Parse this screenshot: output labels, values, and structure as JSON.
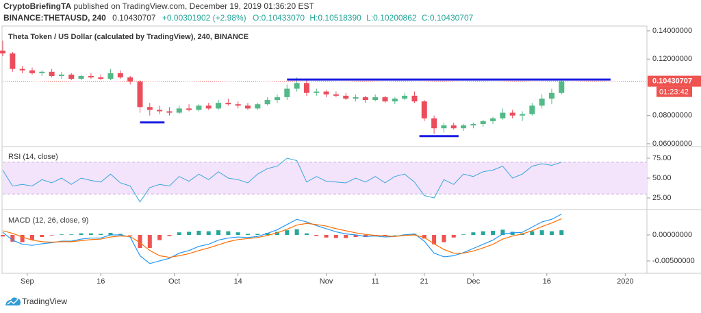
{
  "header": {
    "author": "CryptoBriefingTA",
    "published": "published on TradingView.com, December 19, 2019 01:36:20 EST",
    "symbol": "BINANCE:THETAUSD, 240",
    "last": "0.10430707",
    "change": "+0.00301902 (+2.98%)",
    "ohlc": [
      "O:0.10433070",
      "H:0.10518390",
      "L:0.10200862",
      "C:0.10430707"
    ]
  },
  "footer": {
    "brand": "TradingView"
  },
  "chart_data": {
    "type": "candlestick",
    "title": "Theta Token / US Dollar (calculated by TradingView), 240, BINANCE",
    "up_color": "#53b987",
    "down_color": "#eb4d5c",
    "x": [
      "2019-08-27",
      "2019-08-29",
      "2019-08-31",
      "2019-09-02",
      "2019-09-04",
      "2019-09-06",
      "2019-09-08",
      "2019-09-10",
      "2019-09-12",
      "2019-09-14",
      "2019-09-16",
      "2019-09-18",
      "2019-09-20",
      "2019-09-22",
      "2019-09-24",
      "2019-09-26",
      "2019-09-28",
      "2019-09-30",
      "2019-10-02",
      "2019-10-04",
      "2019-10-06",
      "2019-10-08",
      "2019-10-10",
      "2019-10-12",
      "2019-10-14",
      "2019-10-16",
      "2019-10-18",
      "2019-10-20",
      "2019-10-22",
      "2019-10-24",
      "2019-10-26",
      "2019-10-28",
      "2019-10-30",
      "2019-11-01",
      "2019-11-03",
      "2019-11-05",
      "2019-11-07",
      "2019-11-09",
      "2019-11-11",
      "2019-11-13",
      "2019-11-15",
      "2019-11-17",
      "2019-11-19",
      "2019-11-21",
      "2019-11-23",
      "2019-11-25",
      "2019-11-27",
      "2019-11-29",
      "2019-12-01",
      "2019-12-03",
      "2019-12-05",
      "2019-12-07",
      "2019-12-09",
      "2019-12-11",
      "2019-12-13",
      "2019-12-15",
      "2019-12-17",
      "2019-12-19"
    ],
    "open": [
      0.126,
      0.124,
      0.113,
      0.112,
      0.11,
      0.111,
      0.108,
      0.109,
      0.106,
      0.108,
      0.107,
      0.106,
      0.11,
      0.107,
      0.104,
      0.086,
      0.084,
      0.083,
      0.082,
      0.085,
      0.084,
      0.087,
      0.085,
      0.089,
      0.088,
      0.087,
      0.085,
      0.088,
      0.091,
      0.093,
      0.099,
      0.103,
      0.096,
      0.097,
      0.095,
      0.094,
      0.092,
      0.093,
      0.091,
      0.093,
      0.09,
      0.092,
      0.094,
      0.09,
      0.078,
      0.071,
      0.073,
      0.071,
      0.073,
      0.074,
      0.076,
      0.078,
      0.082,
      0.08,
      0.081,
      0.087,
      0.092,
      0.096
    ],
    "high": [
      0.133,
      0.125,
      0.115,
      0.114,
      0.112,
      0.113,
      0.111,
      0.11,
      0.109,
      0.11,
      0.109,
      0.113,
      0.112,
      0.108,
      0.105,
      0.089,
      0.087,
      0.086,
      0.087,
      0.088,
      0.088,
      0.089,
      0.091,
      0.092,
      0.09,
      0.089,
      0.089,
      0.093,
      0.095,
      0.102,
      0.107,
      0.106,
      0.099,
      0.098,
      0.097,
      0.096,
      0.095,
      0.094,
      0.095,
      0.094,
      0.093,
      0.096,
      0.097,
      0.091,
      0.08,
      0.075,
      0.075,
      0.074,
      0.075,
      0.077,
      0.079,
      0.085,
      0.084,
      0.083,
      0.089,
      0.095,
      0.099,
      0.1052
    ],
    "low": [
      0.122,
      0.111,
      0.11,
      0.109,
      0.108,
      0.107,
      0.106,
      0.105,
      0.105,
      0.106,
      0.105,
      0.105,
      0.106,
      0.102,
      0.082,
      0.08,
      0.081,
      0.08,
      0.081,
      0.083,
      0.083,
      0.084,
      0.084,
      0.087,
      0.085,
      0.084,
      0.084,
      0.087,
      0.089,
      0.091,
      0.097,
      0.094,
      0.094,
      0.093,
      0.093,
      0.091,
      0.09,
      0.089,
      0.09,
      0.089,
      0.088,
      0.091,
      0.089,
      0.076,
      0.067,
      0.068,
      0.07,
      0.069,
      0.071,
      0.072,
      0.074,
      0.077,
      0.078,
      0.076,
      0.08,
      0.085,
      0.088,
      0.095
    ],
    "close": [
      0.124,
      0.113,
      0.112,
      0.11,
      0.111,
      0.108,
      0.109,
      0.106,
      0.108,
      0.107,
      0.106,
      0.11,
      0.107,
      0.104,
      0.086,
      0.084,
      0.083,
      0.082,
      0.085,
      0.084,
      0.087,
      0.085,
      0.089,
      0.088,
      0.087,
      0.085,
      0.088,
      0.091,
      0.093,
      0.099,
      0.103,
      0.096,
      0.097,
      0.095,
      0.094,
      0.092,
      0.093,
      0.091,
      0.093,
      0.09,
      0.092,
      0.094,
      0.09,
      0.078,
      0.071,
      0.073,
      0.071,
      0.073,
      0.074,
      0.076,
      0.078,
      0.082,
      0.08,
      0.081,
      0.087,
      0.092,
      0.096,
      0.1043
    ],
    "xlim": [
      "2019-08-27",
      "2020-01-05"
    ],
    "xticks": [
      {
        "value": "2019-09-01",
        "label": "Sep"
      },
      {
        "value": "2019-09-16",
        "label": "16"
      },
      {
        "value": "2019-10-01",
        "label": "Oct"
      },
      {
        "value": "2019-10-14",
        "label": "14"
      },
      {
        "value": "2019-11-01",
        "label": "Nov"
      },
      {
        "value": "2019-11-11",
        "label": "11"
      },
      {
        "value": "2019-11-21",
        "label": "21"
      },
      {
        "value": "2019-12-01",
        "label": "Dec"
      },
      {
        "value": "2019-12-16",
        "label": "16"
      },
      {
        "value": "2020-01-01",
        "label": "2020"
      }
    ],
    "ylim": [
      0.0585,
      0.1434
    ],
    "yticks": [
      {
        "value": 0.14,
        "label": "0.14000000"
      },
      {
        "value": 0.12,
        "label": "0.12000000"
      },
      {
        "value": 0.08,
        "label": "0.08000000"
      },
      {
        "value": 0.06,
        "label": "0.06000000"
      }
    ],
    "last_price": {
      "value": 0.10430707,
      "label": "0.10430707"
    },
    "last_price_color": "#ef5350",
    "countdown": "01:23:42",
    "levels": [
      {
        "value": 0.1055,
        "from": "2019-10-24",
        "to": "2019-12-29"
      },
      {
        "value": 0.0751,
        "from": "2019-09-24",
        "to": "2019-09-29"
      },
      {
        "value": 0.0654,
        "from": "2019-11-20",
        "to": "2019-11-28"
      }
    ],
    "level_color": "#1a1ae0",
    "indicators": [
      {
        "type": "line",
        "title": "RSI (14, close)",
        "color": "#3aa8dc",
        "band": [
          30,
          70
        ],
        "band_color": "#f3e3fb",
        "values": [
          60,
          40,
          42,
          40,
          48,
          44,
          50,
          42,
          50,
          47,
          45,
          55,
          44,
          40,
          20,
          38,
          42,
          40,
          52,
          46,
          55,
          48,
          58,
          50,
          48,
          44,
          55,
          62,
          65,
          75,
          72,
          45,
          52,
          46,
          45,
          44,
          50,
          45,
          52,
          44,
          52,
          55,
          45,
          28,
          25,
          48,
          42,
          55,
          52,
          58,
          60,
          65,
          50,
          55,
          65,
          68,
          66,
          70
        ],
        "ylim": [
          11.2,
          88.8
        ],
        "yticks": [
          {
            "value": 75,
            "label": "75.00"
          },
          {
            "value": 50,
            "label": "50.00"
          },
          {
            "value": 25,
            "label": "25.00"
          }
        ]
      },
      {
        "type": "macd",
        "title": "MACD (12, 26, close, 9)",
        "series": [
          {
            "color": "#2196f3",
            "values": [
              0.0005,
              -0.001,
              -0.0018,
              -0.002,
              -0.0017,
              -0.0015,
              -0.0012,
              -0.0012,
              -0.0008,
              -0.0006,
              -0.0006,
              0.0,
              0.0,
              -0.0004,
              -0.004,
              -0.0055,
              -0.005,
              -0.0045,
              -0.0035,
              -0.003,
              -0.0022,
              -0.0018,
              -0.001,
              -0.0006,
              -0.0004,
              -0.0005,
              -0.0003,
              0.0003,
              0.001,
              0.002,
              0.003,
              0.0025,
              0.0018,
              0.0012,
              0.0006,
              0.0002,
              0.0,
              -0.0003,
              -0.0002,
              -0.0004,
              -0.0003,
              0.0,
              0.0002,
              -0.0012,
              -0.0035,
              -0.0042,
              -0.004,
              -0.0034,
              -0.0026,
              -0.0018,
              -0.001,
              0.0002,
              0.0004,
              0.0005,
              0.0015,
              0.0025,
              0.003,
              0.004
            ]
          },
          {
            "color": "#ff6d00",
            "values": [
              0.0008,
              0.0003,
              -0.0004,
              -0.001,
              -0.0013,
              -0.0014,
              -0.0013,
              -0.0013,
              -0.0011,
              -0.0009,
              -0.0008,
              -0.0004,
              -0.0002,
              -0.0003,
              -0.0015,
              -0.003,
              -0.004,
              -0.0043,
              -0.004,
              -0.0036,
              -0.003,
              -0.0025,
              -0.0019,
              -0.0013,
              -0.0009,
              -0.0007,
              -0.0005,
              -0.0001,
              0.0004,
              0.0011,
              0.0019,
              0.0022,
              0.002,
              0.0017,
              0.0012,
              0.0008,
              0.0004,
              0.0001,
              -0.0001,
              -0.0002,
              -0.0003,
              -0.0001,
              0.0,
              -0.0005,
              -0.0017,
              -0.0028,
              -0.0035,
              -0.0035,
              -0.0031,
              -0.0025,
              -0.0018,
              -0.0008,
              -0.0002,
              0.0002,
              0.0008,
              0.0016,
              0.0023,
              0.0031
            ]
          }
        ],
        "histogram": [
          -0.0003,
          -0.0013,
          -0.0014,
          -0.001,
          -0.0004,
          -0.0001,
          0.0001,
          0.0001,
          0.0003,
          0.0003,
          0.0002,
          0.0004,
          0.0002,
          -0.0001,
          -0.0025,
          -0.0025,
          -0.001,
          -0.0002,
          0.0005,
          0.0006,
          0.0008,
          0.0007,
          0.0009,
          0.0007,
          0.0005,
          0.0002,
          0.0002,
          0.0004,
          0.0006,
          0.0009,
          0.0011,
          0.0003,
          -0.0002,
          -0.0005,
          -0.0006,
          -0.0006,
          -0.0004,
          -0.0004,
          -0.0001,
          -0.0002,
          0.0,
          0.0001,
          0.0002,
          -0.0007,
          -0.0018,
          -0.0014,
          -0.0005,
          0.0001,
          0.0005,
          0.0007,
          0.0008,
          0.001,
          0.0006,
          0.0003,
          0.0007,
          0.0009,
          0.0007,
          0.0009
        ],
        "histogram_up_color": "#26a69a",
        "histogram_down_color": "#ef5350",
        "ylim": [
          -0.00724,
          0.00474
        ],
        "yticks": [
          {
            "value": 0,
            "label": "0.00000000"
          },
          {
            "value": -0.005,
            "label": "-0.00500000"
          }
        ]
      }
    ]
  }
}
